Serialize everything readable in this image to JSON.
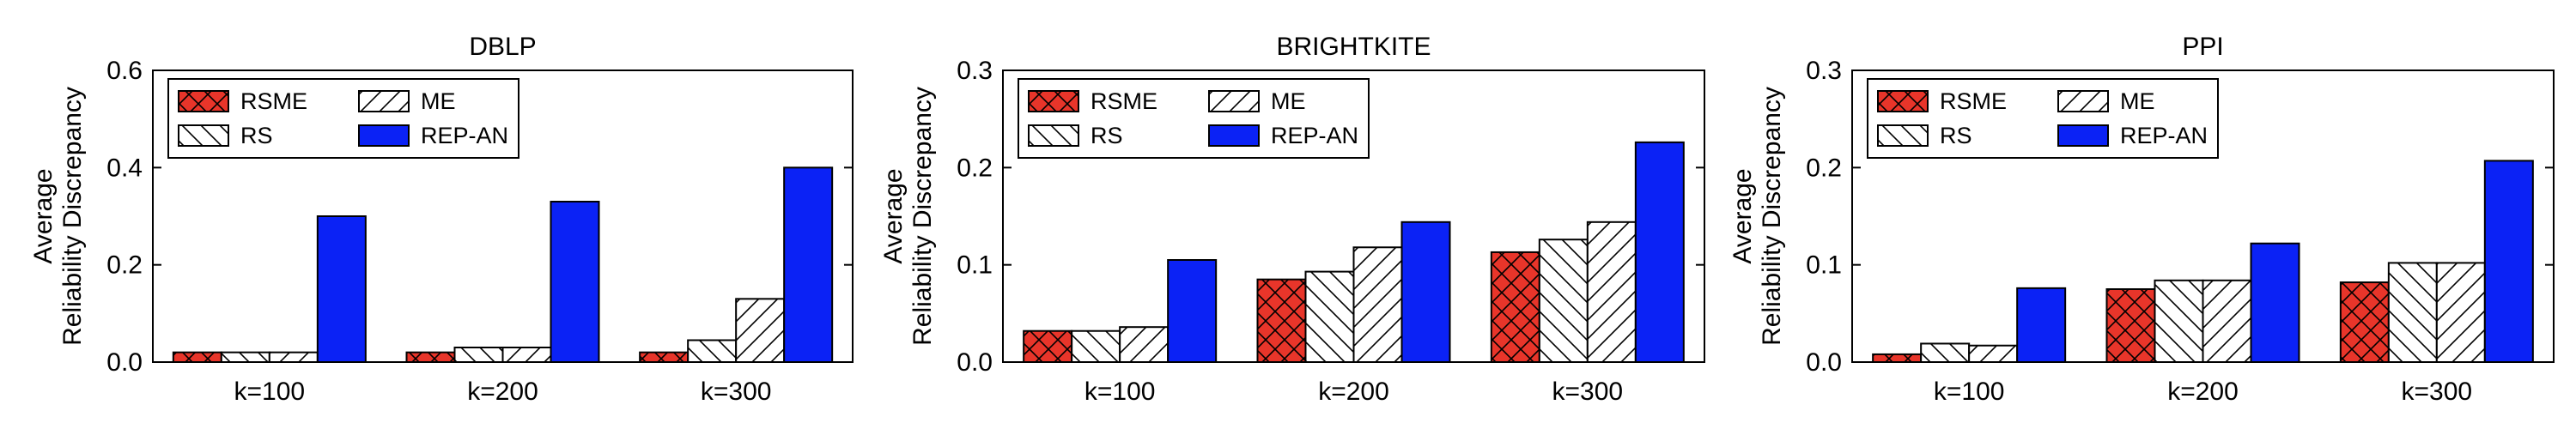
{
  "chart_data": [
    {
      "type": "bar",
      "title": "DBLP",
      "ylabel": [
        "Average",
        "Reliability Discrepancy"
      ],
      "categories": [
        "k=100",
        "k=200",
        "k=300"
      ],
      "ylim": [
        0,
        0.6
      ],
      "yticks": [
        "0.0",
        "0.2",
        "0.4",
        "0.6"
      ],
      "legend_position": "top-left",
      "series": [
        {
          "name": "RSME",
          "values": [
            0.02,
            0.02,
            0.02
          ]
        },
        {
          "name": "RS",
          "values": [
            0.02,
            0.03,
            0.045
          ]
        },
        {
          "name": "ME",
          "values": [
            0.02,
            0.03,
            0.13
          ]
        },
        {
          "name": "REP-AN",
          "values": [
            0.3,
            0.33,
            0.4
          ]
        }
      ]
    },
    {
      "type": "bar",
      "title": "BRIGHTKITE",
      "ylabel": [
        "Average",
        "Reliability Discrepancy"
      ],
      "categories": [
        "k=100",
        "k=200",
        "k=300"
      ],
      "ylim": [
        0,
        0.3
      ],
      "yticks": [
        "0.0",
        "0.1",
        "0.2",
        "0.3"
      ],
      "legend_position": "top-left",
      "series": [
        {
          "name": "RSME",
          "values": [
            0.032,
            0.085,
            0.113
          ]
        },
        {
          "name": "RS",
          "values": [
            0.032,
            0.093,
            0.126
          ]
        },
        {
          "name": "ME",
          "values": [
            0.036,
            0.118,
            0.144
          ]
        },
        {
          "name": "REP-AN",
          "values": [
            0.105,
            0.144,
            0.226
          ]
        }
      ]
    },
    {
      "type": "bar",
      "title": "PPI",
      "ylabel": [
        "Average",
        "Reliability Discrepancy"
      ],
      "categories": [
        "k=100",
        "k=200",
        "k=300"
      ],
      "ylim": [
        0,
        0.3
      ],
      "yticks": [
        "0.0",
        "0.1",
        "0.2",
        "0.3"
      ],
      "legend_position": "top-left",
      "series": [
        {
          "name": "RSME",
          "values": [
            0.008,
            0.075,
            0.082
          ]
        },
        {
          "name": "RS",
          "values": [
            0.019,
            0.084,
            0.102
          ]
        },
        {
          "name": "ME",
          "values": [
            0.017,
            0.084,
            0.102
          ]
        },
        {
          "name": "REP-AN",
          "values": [
            0.076,
            0.122,
            0.207
          ]
        }
      ]
    }
  ],
  "series_styles": [
    {
      "name": "RSME",
      "fill": "#e8352a",
      "pattern": "crosshatch"
    },
    {
      "name": "RS",
      "fill": "#ffffff",
      "pattern": "backslash"
    },
    {
      "name": "ME",
      "fill": "#ffffff",
      "pattern": "slash"
    },
    {
      "name": "REP-AN",
      "fill": "#0b22f5",
      "pattern": "solid"
    }
  ]
}
